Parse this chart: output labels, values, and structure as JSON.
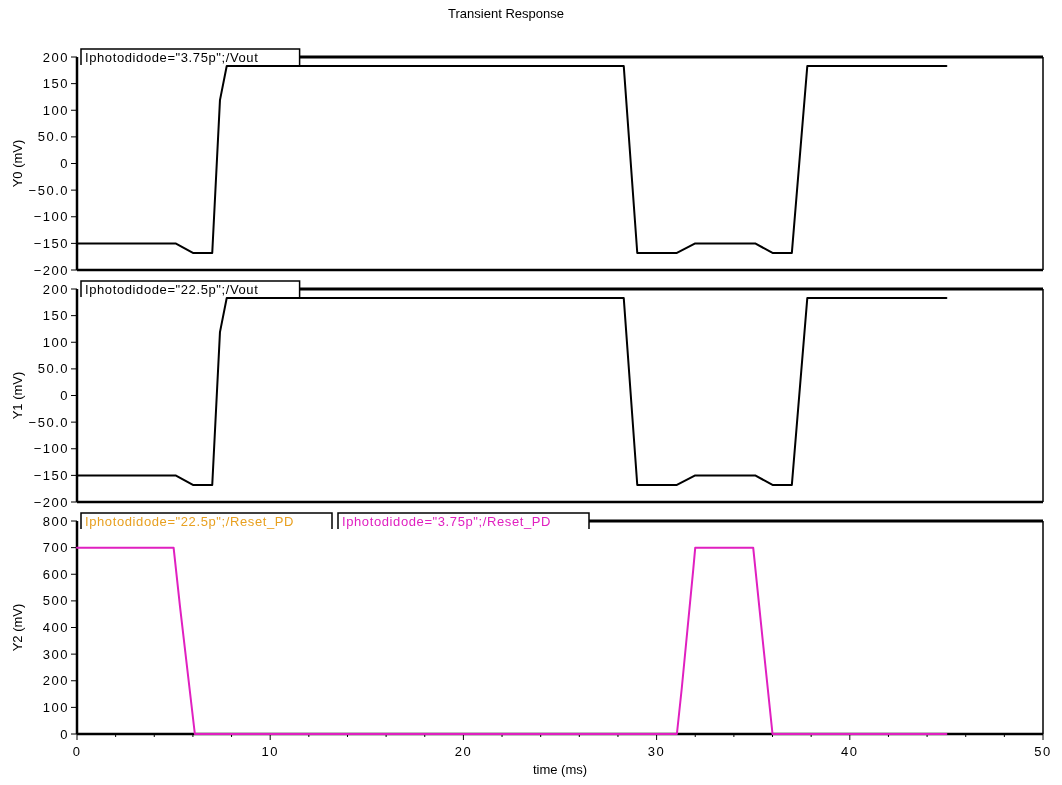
{
  "chart_data": [
    {
      "type": "line",
      "title": "Transient Response",
      "ylabel": "Y0 (mV)",
      "xlim": [
        0,
        50
      ],
      "ylim": [
        -200,
        200
      ],
      "yticks": [
        200,
        150,
        100,
        {
          "value": 50,
          "label": "50.0"
        },
        0,
        {
          "value": -50,
          "label": "−50.0"
        },
        {
          "value": -100,
          "label": "−100"
        },
        {
          "value": -150,
          "label": "−150"
        },
        {
          "value": -200,
          "label": "−200"
        }
      ],
      "tick_labels": "y",
      "legend": "top left",
      "series": [
        {
          "name": "Iphotodidode=\"3.75p\";/Vout",
          "color": "#000000",
          "x": [
            0,
            5.1,
            6,
            7,
            7.4,
            7.75,
            28.3,
            29,
            31.05,
            32,
            35.1,
            36,
            37,
            37.8,
            45
          ],
          "values": [
            -150,
            -150,
            -168,
            -168,
            119,
            183,
            183,
            -168,
            -168,
            -150,
            -150,
            -168,
            -168,
            183,
            183
          ]
        }
      ]
    },
    {
      "type": "line",
      "ylabel": "Y1 (mV)",
      "xlim": [
        0,
        50
      ],
      "ylim": [
        -200,
        200
      ],
      "yticks": [
        200,
        150,
        100,
        {
          "value": 50,
          "label": "50.0"
        },
        0,
        {
          "value": -50,
          "label": "−50.0"
        },
        {
          "value": -100,
          "label": "−100"
        },
        {
          "value": -150,
          "label": "−150"
        },
        {
          "value": -200,
          "label": "−200"
        }
      ],
      "tick_labels": "y",
      "legend": "top left",
      "series": [
        {
          "name": "Iphotodidode=\"22.5p\";/Vout",
          "color": "#000000",
          "x": [
            0,
            5.1,
            6,
            7,
            7.4,
            7.75,
            28.3,
            29,
            31.05,
            32,
            35.1,
            36,
            37,
            37.8,
            45
          ],
          "values": [
            -150,
            -150,
            -168,
            -168,
            119,
            183,
            183,
            -168,
            -168,
            -150,
            -150,
            -168,
            -168,
            183,
            183
          ]
        }
      ]
    },
    {
      "type": "line",
      "xlabel": "time (ms)",
      "ylabel": "Y2 (mV)",
      "xlim": [
        0,
        50
      ],
      "ylim": [
        0,
        800
      ],
      "xticks": [
        0,
        {
          "value": 2,
          "label": null
        },
        {
          "value": 4,
          "label": null
        },
        {
          "value": 6,
          "label": null
        },
        {
          "value": 8,
          "label": null
        },
        10,
        {
          "value": 12,
          "label": null
        },
        {
          "value": 14,
          "label": null
        },
        {
          "value": 16,
          "label": null
        },
        {
          "value": 18,
          "label": null
        },
        20,
        {
          "value": 22,
          "label": null
        },
        {
          "value": 24,
          "label": null
        },
        {
          "value": 26,
          "label": null
        },
        {
          "value": 28,
          "label": null
        },
        30,
        {
          "value": 32,
          "label": null
        },
        {
          "value": 34,
          "label": null
        },
        {
          "value": 36,
          "label": null
        },
        {
          "value": 38,
          "label": null
        },
        40,
        {
          "value": 42,
          "label": null
        },
        {
          "value": 44,
          "label": null
        },
        {
          "value": 46,
          "label": null
        },
        {
          "value": 48,
          "label": null
        },
        50
      ],
      "yticks": [
        0,
        100,
        200,
        300,
        400,
        500,
        600,
        700,
        800
      ],
      "legend": "top left",
      "series": [
        {
          "name": "Iphotodidode=\"22.5p\";/Reset_PD",
          "color": "#e8a020"
        },
        {
          "name": "Iphotodidode=\"3.75p\";/Reset_PD",
          "color": "#e020c0",
          "x": [
            0,
            5,
            5.33,
            6.1,
            31.05,
            31.3,
            31.9,
            32,
            35,
            35.5,
            36,
            45
          ],
          "values": [
            700,
            700,
            479,
            0,
            0,
            170,
            620,
            700,
            700,
            347,
            0,
            0
          ]
        }
      ]
    }
  ]
}
